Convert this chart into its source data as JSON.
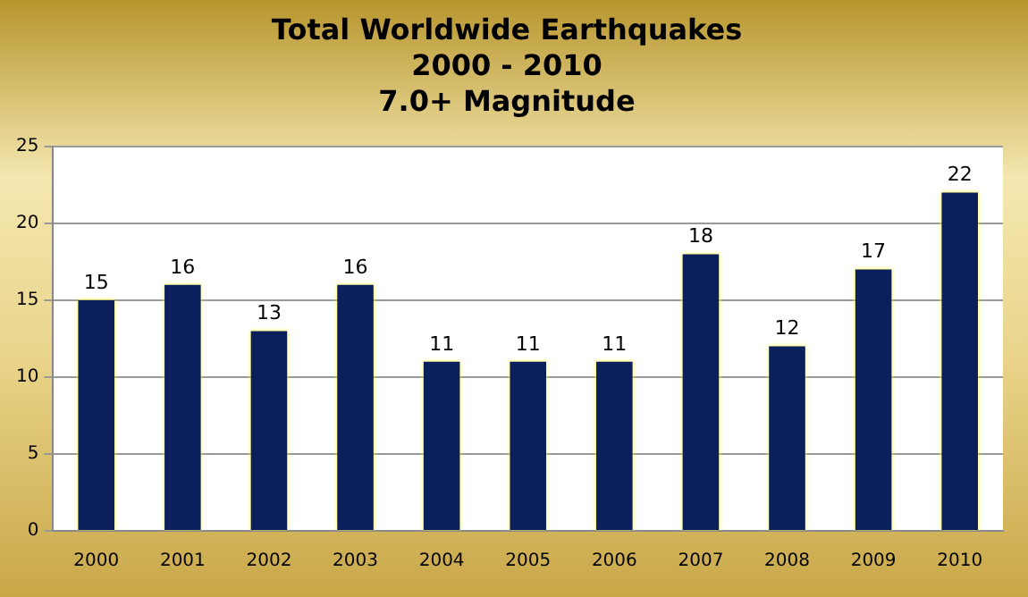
{
  "chart_data": {
    "type": "bar",
    "title": "Total Worldwide Earthquakes\n2000 - 2010\n7.0+ Magnitude",
    "categories": [
      "2000",
      "2001",
      "2002",
      "2003",
      "2004",
      "2005",
      "2006",
      "2007",
      "2008",
      "2009",
      "2010"
    ],
    "values": [
      15,
      16,
      13,
      16,
      11,
      11,
      11,
      18,
      12,
      17,
      22
    ],
    "color": "#0a1f5c",
    "ylim": [
      0,
      25
    ],
    "yticks": [
      0,
      5,
      10,
      15,
      20,
      25
    ],
    "grid": "y",
    "data_labels": true
  }
}
